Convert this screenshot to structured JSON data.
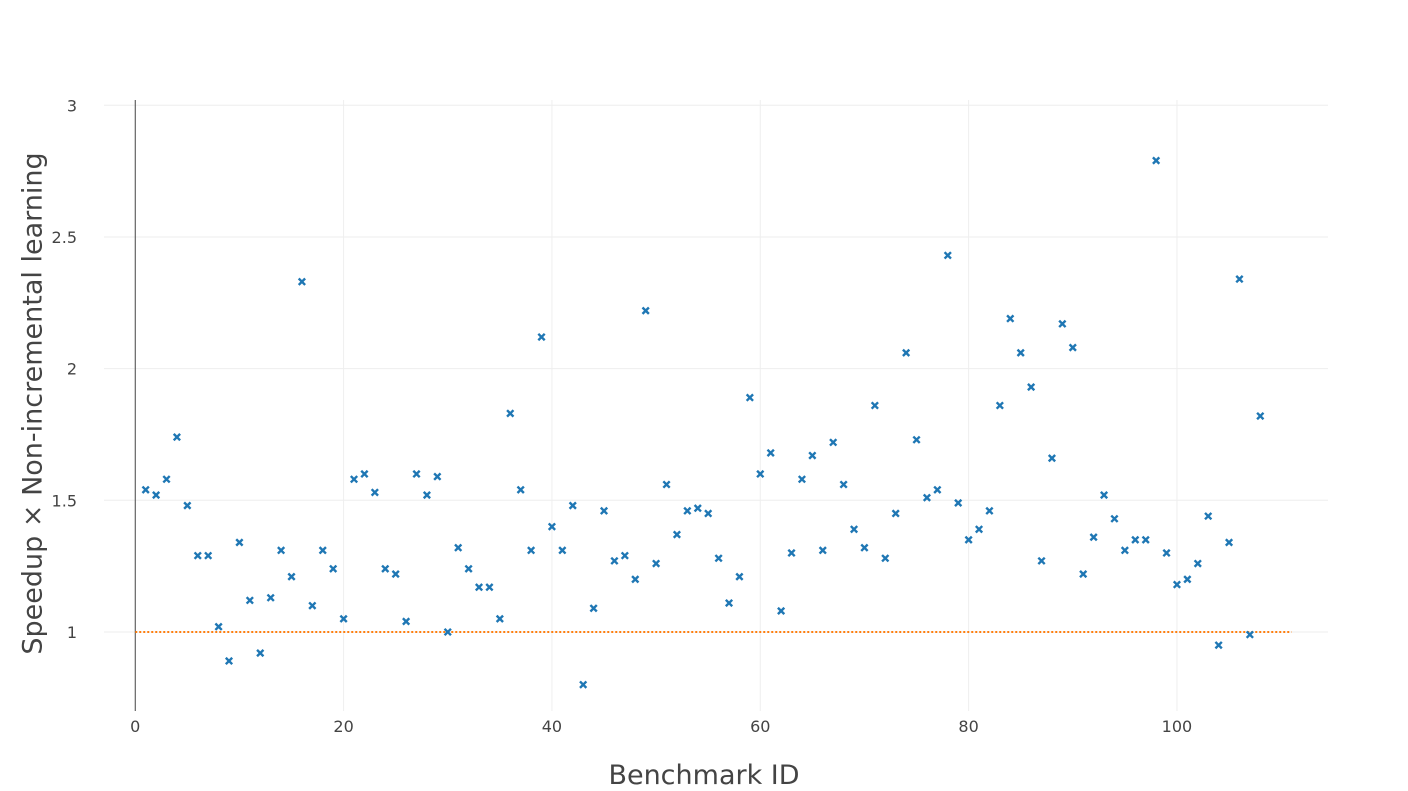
{
  "chart_data": {
    "type": "scatter",
    "title": "",
    "xlabel": "Benchmark ID",
    "ylabel": "Speedup ×  Non-incremental learning",
    "xlim": [
      -3,
      114.5
    ],
    "ylim": [
      0.7,
      3.02
    ],
    "xticks": [
      0,
      20,
      40,
      60,
      80,
      100
    ],
    "yticks": [
      1,
      1.5,
      2,
      2.5,
      3
    ],
    "xtick_labels": [
      "0",
      "20",
      "40",
      "60",
      "80",
      "100"
    ],
    "ytick_labels": [
      "1",
      "1.5",
      "2",
      "2.5",
      "3"
    ],
    "grid": true,
    "marker": "x-thin-open",
    "marker_color": "#1f77b4",
    "reference_line": {
      "y": 1,
      "x_range": [
        0,
        111
      ],
      "color": "#ff7f0e",
      "style": "dotted"
    },
    "series": [
      {
        "x": [
          1,
          2,
          3,
          4,
          5,
          6,
          7,
          8,
          9,
          10,
          11,
          12,
          13,
          14,
          15,
          16,
          17,
          18,
          19,
          20,
          21,
          22,
          23,
          24,
          25,
          26,
          27,
          28,
          29,
          30,
          31,
          32,
          33,
          34,
          35,
          36,
          37,
          38,
          39,
          40,
          41,
          42,
          43,
          44,
          45,
          46,
          47,
          48,
          49,
          50,
          51,
          52,
          53,
          54,
          55,
          56,
          57,
          58,
          59,
          60,
          61,
          62,
          63,
          64,
          65,
          66,
          67,
          68,
          69,
          70,
          71,
          72,
          73,
          74,
          75,
          76,
          77,
          78,
          79,
          80,
          81,
          82,
          83,
          84,
          85,
          86,
          87,
          88,
          89,
          90,
          91,
          92,
          93,
          94,
          95,
          96,
          97,
          98,
          99,
          100,
          101,
          102,
          103,
          104,
          105,
          106,
          107,
          108
        ],
        "y": [
          1.54,
          1.52,
          1.58,
          1.74,
          1.48,
          1.29,
          1.29,
          1.02,
          0.89,
          1.34,
          1.12,
          0.92,
          1.13,
          1.31,
          1.21,
          2.33,
          1.1,
          1.31,
          1.24,
          1.05,
          1.58,
          1.6,
          1.53,
          1.24,
          1.22,
          1.04,
          1.6,
          1.52,
          1.59,
          1.0,
          1.32,
          1.24,
          1.17,
          1.17,
          1.05,
          1.83,
          1.54,
          1.31,
          2.12,
          1.4,
          1.31,
          1.48,
          0.8,
          1.09,
          1.46,
          1.27,
          1.29,
          1.2,
          2.22,
          1.26,
          1.56,
          1.37,
          1.46,
          1.47,
          1.45,
          1.28,
          1.11,
          1.21,
          1.89,
          1.6,
          1.68,
          1.08,
          1.3,
          1.58,
          1.67,
          1.31,
          1.72,
          1.56,
          1.39,
          1.32,
          1.86,
          1.28,
          1.45,
          2.06,
          1.73,
          1.51,
          1.54,
          2.43,
          1.49,
          1.35,
          1.39,
          1.46,
          1.86,
          2.19,
          2.06,
          1.93,
          1.27,
          1.66,
          2.17,
          2.08,
          1.22,
          1.36,
          1.52,
          1.43,
          1.31,
          1.35,
          1.35,
          2.79,
          1.3,
          1.18,
          1.2,
          1.26,
          1.44,
          0.95,
          1.34,
          2.34,
          0.99,
          1.82
        ]
      }
    ]
  }
}
